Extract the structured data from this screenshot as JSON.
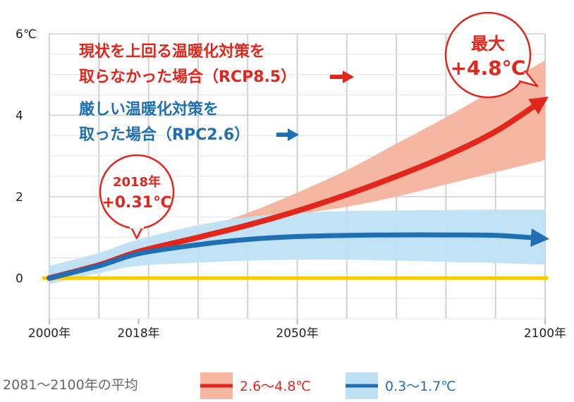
{
  "chart_data": {
    "type": "area",
    "title": "",
    "xlabel": "",
    "ylabel": "",
    "xlim": [
      2000,
      2100
    ],
    "ylim": [
      -1,
      6
    ],
    "y_ticks": [
      {
        "value": 6,
        "label": "6℃"
      },
      {
        "value": 4,
        "label": "4"
      },
      {
        "value": 2,
        "label": "2"
      },
      {
        "value": 0,
        "label": "0"
      }
    ],
    "x_ticks": [
      {
        "value": 2000,
        "label": "2000年"
      },
      {
        "value": 2018,
        "label": "2018年"
      },
      {
        "value": 2050,
        "label": "2050年"
      },
      {
        "value": 2100,
        "label": "2100年"
      }
    ],
    "grid": true,
    "series": [
      {
        "name": "RCP8.5",
        "color": "#e3261c",
        "band_color": "#f5b7a2",
        "x": [
          2000,
          2010,
          2018,
          2030,
          2040,
          2050,
          2060,
          2070,
          2080,
          2090,
          2100
        ],
        "values": [
          0.0,
          0.32,
          0.65,
          1.0,
          1.3,
          1.65,
          2.05,
          2.5,
          3.0,
          3.6,
          4.4
        ],
        "band_upper": [
          0.1,
          0.5,
          0.85,
          1.2,
          1.6,
          2.1,
          2.65,
          3.3,
          3.95,
          4.65,
          5.35
        ],
        "band_lower": [
          -0.1,
          0.25,
          0.5,
          0.85,
          1.2,
          1.55,
          1.75,
          2.0,
          2.3,
          2.6,
          2.9
        ]
      },
      {
        "name": "RPC2.6",
        "color": "#1f6fb4",
        "band_color": "#bfe2f6",
        "x": [
          2000,
          2010,
          2018,
          2030,
          2040,
          2050,
          2060,
          2070,
          2080,
          2090,
          2100
        ],
        "values": [
          0.0,
          0.3,
          0.6,
          0.82,
          0.95,
          1.02,
          1.05,
          1.06,
          1.06,
          1.05,
          0.97
        ],
        "band_upper": [
          0.3,
          0.62,
          0.95,
          1.3,
          1.5,
          1.6,
          1.65,
          1.66,
          1.67,
          1.68,
          1.68
        ],
        "band_lower": [
          -0.15,
          0.12,
          0.3,
          0.38,
          0.43,
          0.45,
          0.45,
          0.43,
          0.4,
          0.37,
          0.33
        ]
      }
    ],
    "baseline": {
      "value": 0,
      "color": "#f7cd00"
    },
    "annotations": {
      "rcp85_line1": "現状を上回る温暖化対策を",
      "rcp85_line2": "取らなかった場合（RCP8.5）",
      "rcp26_line1": "厳しい温暖化対策を",
      "rcp26_line2": "取った場合（RPC2.6）"
    },
    "callout_2018": {
      "line1": "2018年",
      "line2": "+0.31℃"
    },
    "callout_max": {
      "line1": "最大",
      "line2": "+4.8℃"
    },
    "legend": {
      "title": "2081〜2100年の平均",
      "items": [
        {
          "label": "2.6〜4.8℃",
          "line_color": "#e3261c",
          "band_color": "#f5b7a2"
        },
        {
          "label": "0.3〜1.7℃",
          "line_color": "#1f6fb4",
          "band_color": "#bfe2f6"
        }
      ]
    }
  }
}
